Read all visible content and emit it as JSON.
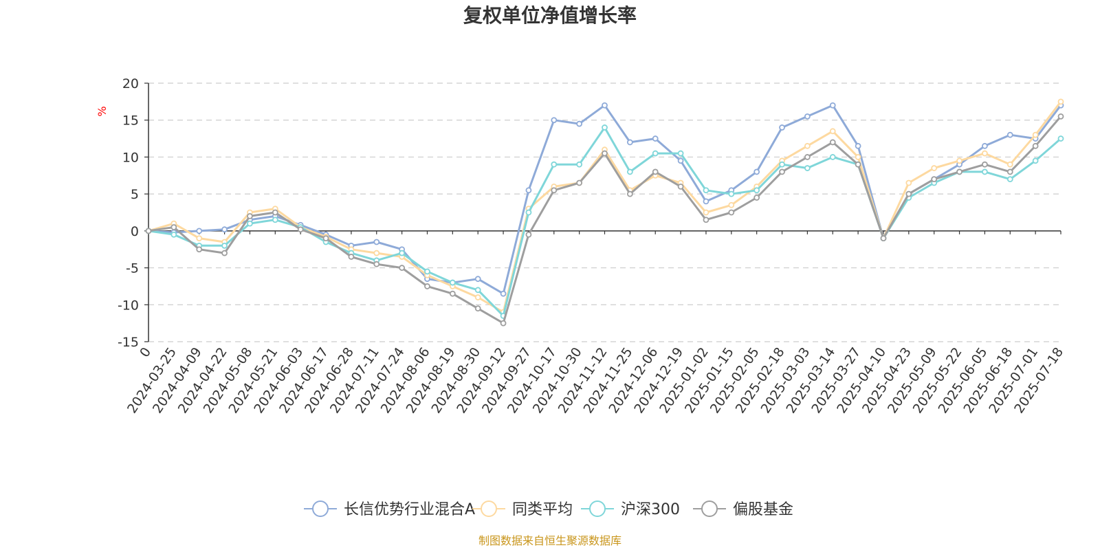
{
  "chart_data": {
    "type": "line",
    "title": "复权单位净值增长率",
    "ylabel": "%",
    "ylim": [
      -15,
      20
    ],
    "yticks": [
      20,
      15,
      10,
      5,
      0,
      -5,
      -10,
      -15
    ],
    "grid": true,
    "legend_position": "bottom",
    "source_note": "制图数据来自恒生聚源数据库",
    "x": [
      "0",
      "2024-03-25",
      "2024-04-09",
      "2024-04-22",
      "2024-05-08",
      "2024-05-21",
      "2024-06-03",
      "2024-06-17",
      "2024-06-28",
      "2024-07-11",
      "2024-07-24",
      "2024-08-06",
      "2024-08-19",
      "2024-08-30",
      "2024-09-12",
      "2024-09-27",
      "2024-10-17",
      "2024-10-30",
      "2024-11-12",
      "2024-11-25",
      "2024-12-06",
      "2024-12-19",
      "2025-01-02",
      "2025-01-15",
      "2025-02-05",
      "2025-02-18",
      "2025-03-03",
      "2025-03-14",
      "2025-03-27",
      "2025-04-10",
      "2025-04-23",
      "2025-05-09",
      "2025-05-22",
      "2025-06-05",
      "2025-06-18",
      "2025-07-01",
      "2025-07-18"
    ],
    "series": [
      {
        "name": "长信优势行业混合A",
        "color": "#8eaad8",
        "values": [
          0,
          -0.2,
          0,
          0.2,
          1.5,
          2.0,
          0.8,
          -0.5,
          -2.0,
          -1.5,
          -2.5,
          -6.5,
          -7.0,
          -6.5,
          -8.5,
          5.5,
          15.0,
          14.5,
          17.0,
          12.0,
          12.5,
          9.5,
          4.0,
          5.5,
          8.0,
          14.0,
          15.5,
          17.0,
          11.5,
          -1.0,
          5.0,
          7.0,
          9.0,
          11.5,
          13.0,
          12.5,
          17.0
        ]
      },
      {
        "name": "同类平均",
        "color": "#fdd9a0",
        "values": [
          0,
          1.0,
          -1.0,
          -1.5,
          2.5,
          3.0,
          0.5,
          -0.8,
          -2.5,
          -3.0,
          -3.5,
          -6.0,
          -7.5,
          -9.0,
          -11.0,
          3.0,
          6.0,
          6.5,
          11.0,
          5.5,
          7.5,
          6.5,
          2.5,
          3.5,
          6.0,
          9.5,
          11.5,
          13.5,
          10.0,
          -1.0,
          6.5,
          8.5,
          9.5,
          10.5,
          9.0,
          13.0,
          17.5
        ]
      },
      {
        "name": "沪深300",
        "color": "#7fd6d9",
        "values": [
          0,
          -0.5,
          -2.0,
          -2.0,
          1.0,
          1.5,
          0.5,
          -1.5,
          -3.0,
          -4.0,
          -3.0,
          -5.5,
          -7.0,
          -8.0,
          -11.5,
          2.5,
          9.0,
          9.0,
          14.0,
          8.0,
          10.5,
          10.5,
          5.5,
          5.0,
          5.5,
          9.0,
          8.5,
          10.0,
          9.0,
          -1.0,
          4.5,
          6.5,
          8.0,
          8.0,
          7.0,
          9.5,
          12.5
        ]
      },
      {
        "name": "偏股基金",
        "color": "#9e9e9e",
        "values": [
          0,
          0.5,
          -2.5,
          -3.0,
          2.0,
          2.5,
          0.2,
          -1.0,
          -3.5,
          -4.5,
          -5.0,
          -7.5,
          -8.5,
          -10.5,
          -12.5,
          -0.5,
          5.5,
          6.5,
          10.5,
          5.0,
          8.0,
          6.0,
          1.5,
          2.5,
          4.5,
          8.0,
          10.0,
          12.0,
          9.0,
          -1.0,
          5.0,
          7.0,
          8.0,
          9.0,
          8.0,
          11.5,
          15.5
        ]
      }
    ]
  }
}
